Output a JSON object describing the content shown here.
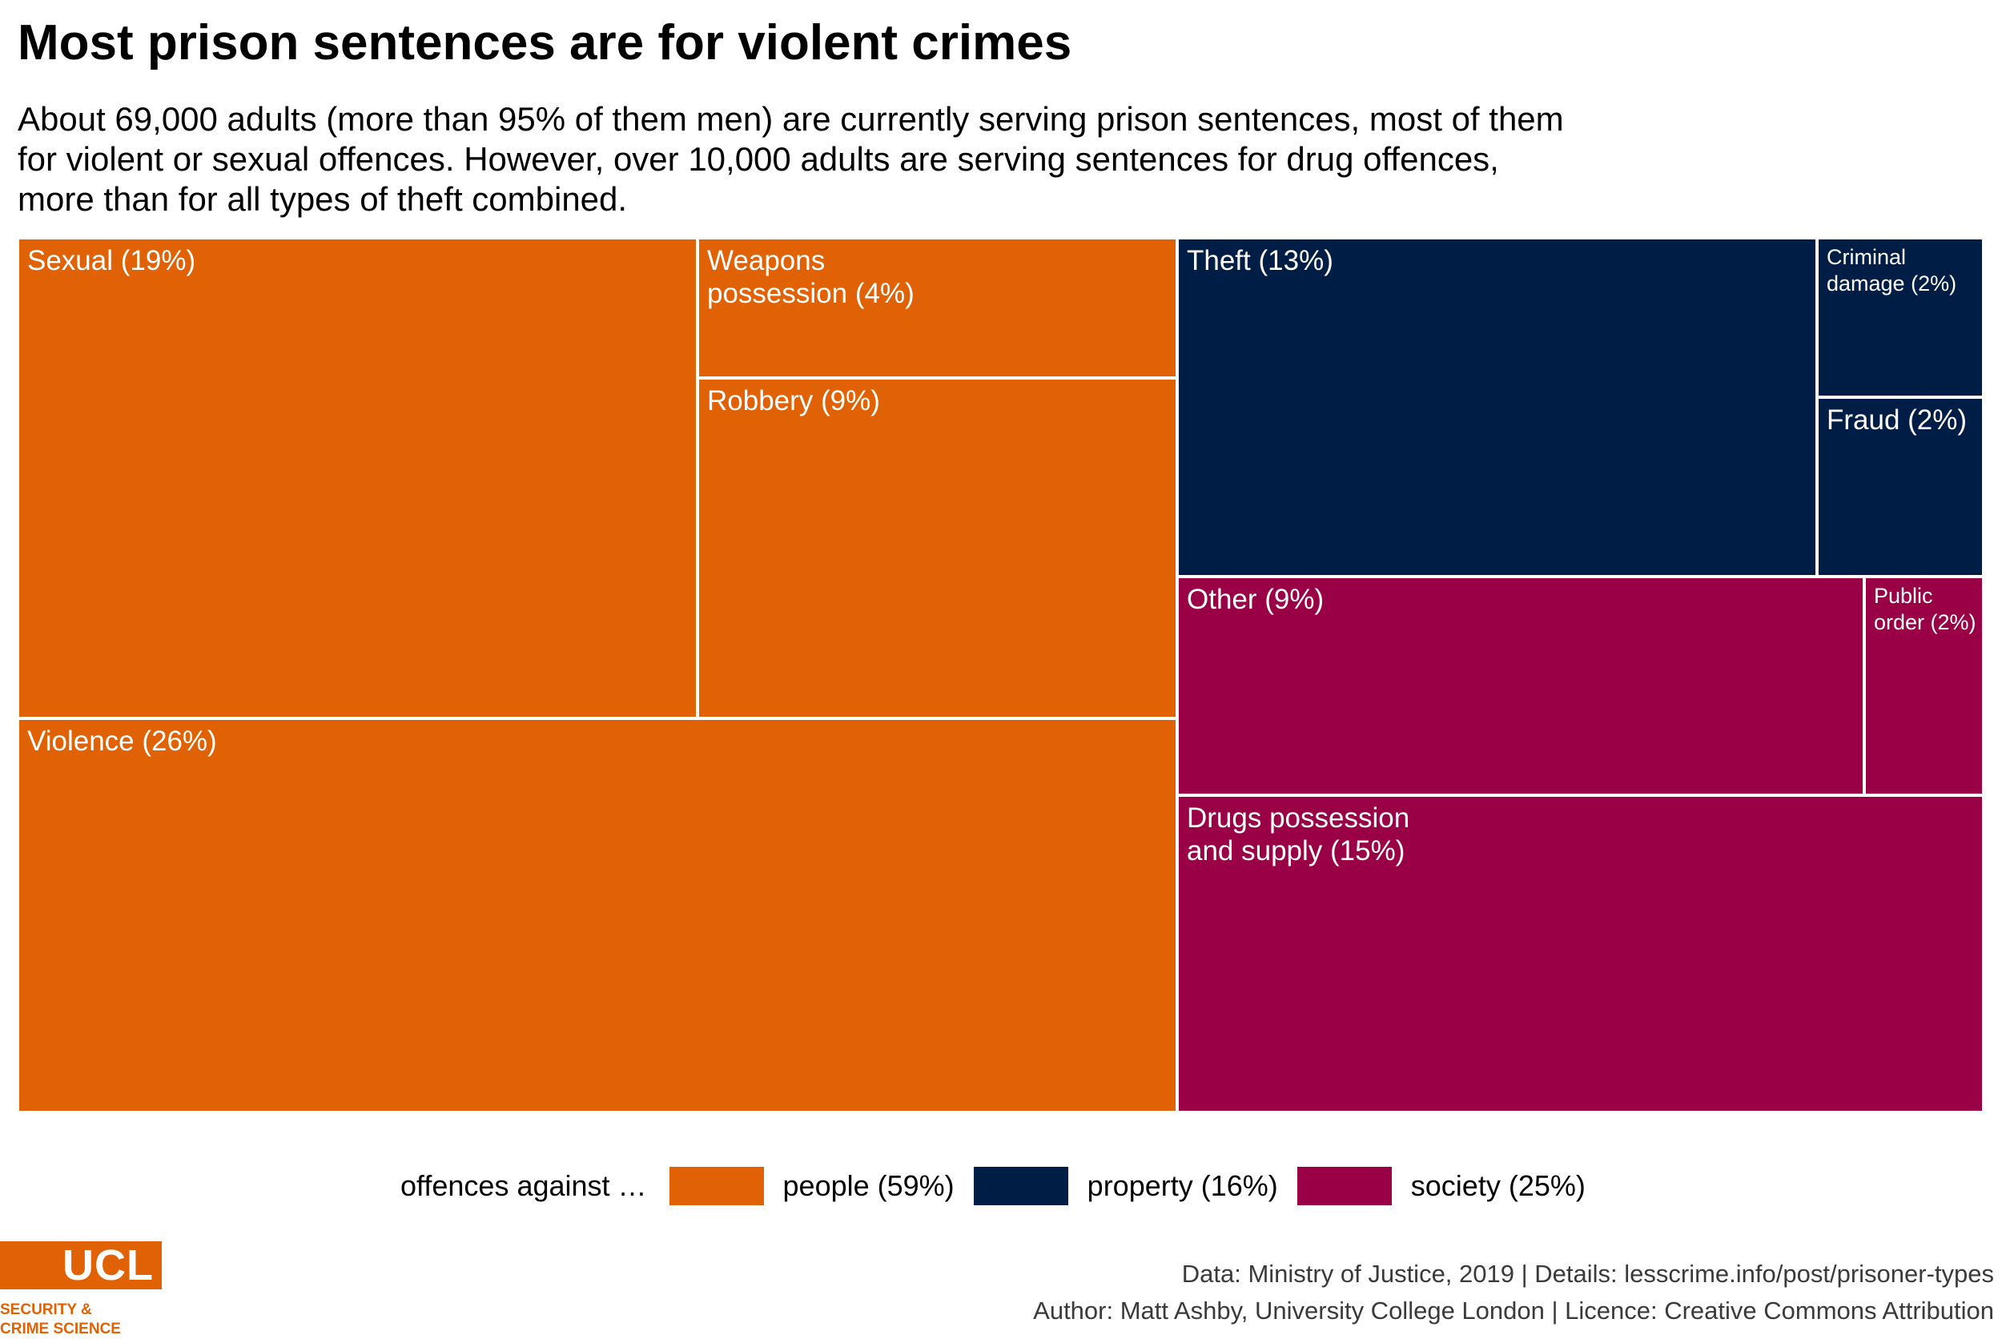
{
  "title": "Most prison sentences are for violent crimes",
  "subtitle_lines": [
    "About 69,000 adults (more than 95% of them men) are currently serving prison sentences, most of them",
    "for violent or sexual offences. However, over 10,000 adults are serving sentences for drug offences,",
    "more than for all types of theft combined."
  ],
  "chart_data": {
    "type": "treemap",
    "groups": [
      {
        "name": "people",
        "label": "people (59%)",
        "percent": 59,
        "color": "#e06205"
      },
      {
        "name": "property",
        "label": "property (16%)",
        "percent": 16,
        "color": "#001e45"
      },
      {
        "name": "society",
        "label": "society (25%)",
        "percent": 25,
        "color": "#9a0045"
      }
    ],
    "items": [
      {
        "id": "sexual",
        "group": "people",
        "label": "Sexual (19%)",
        "percent": 19
      },
      {
        "id": "weapons",
        "group": "people",
        "label": "Weapons\npossession (4%)",
        "percent": 4
      },
      {
        "id": "robbery",
        "group": "people",
        "label": "Robbery (9%)",
        "percent": 9
      },
      {
        "id": "violence",
        "group": "people",
        "label": "Violence (26%)",
        "percent": 26
      },
      {
        "id": "theft",
        "group": "property",
        "label": "Theft (13%)",
        "percent": 13
      },
      {
        "id": "criminal-damage",
        "group": "property",
        "label": "Criminal\ndamage (2%)",
        "percent": 2
      },
      {
        "id": "fraud",
        "group": "property",
        "label": "Fraud (2%)",
        "percent": 2
      },
      {
        "id": "other",
        "group": "society",
        "label": "Other (9%)",
        "percent": 9
      },
      {
        "id": "public-order",
        "group": "society",
        "label": "Public\norder (2%)",
        "percent": 2
      },
      {
        "id": "drugs",
        "group": "society",
        "label": "Drugs possession\nand supply (15%)",
        "percent": 15
      }
    ]
  },
  "legend": {
    "title": "offences against …",
    "items": [
      "people (59%)",
      "property (16%)",
      "society (25%)"
    ]
  },
  "logo": {
    "name": "UCL",
    "sub_line1": "SECURITY &",
    "sub_line2": "CRIME SCIENCE"
  },
  "credits": {
    "line1": "Data: Ministry of Justice, 2019 |  Details: lesscrime.info/post/prisoner-types",
    "line2": "Author: Matt Ashby, University College London |  Licence: Creative Commons Attribution"
  }
}
